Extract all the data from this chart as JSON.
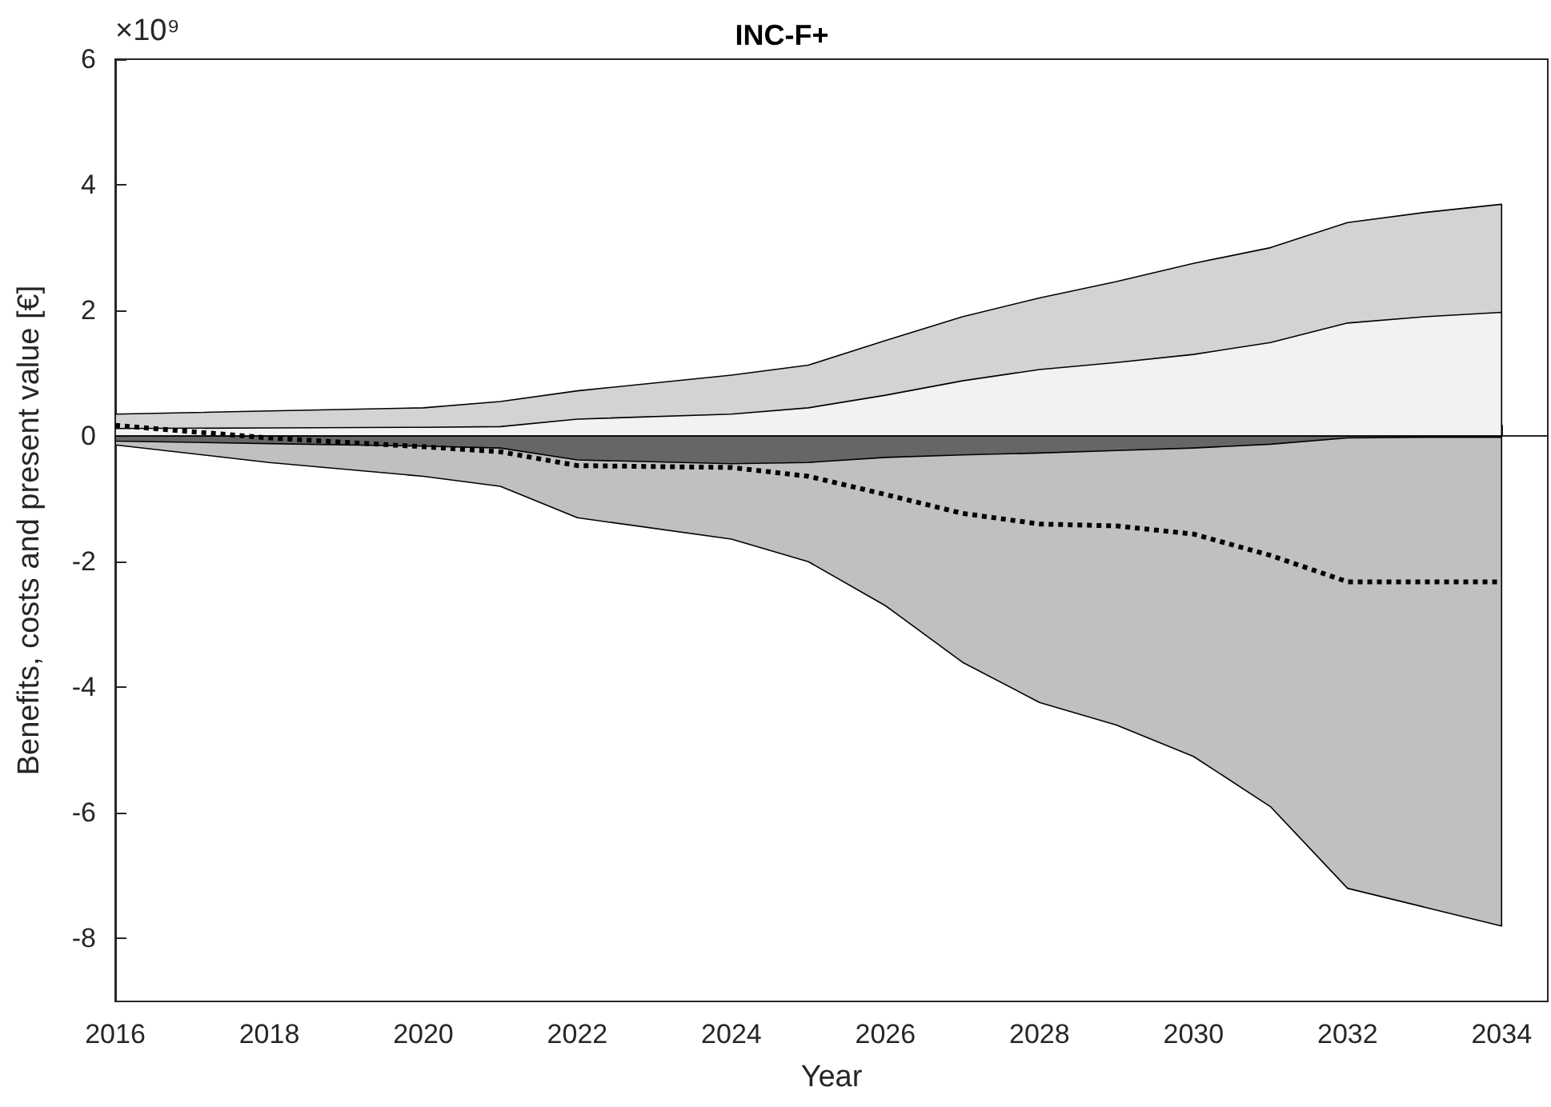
{
  "chart_data": {
    "type": "area",
    "title": "INC-F+",
    "xlabel": "Year",
    "ylabel": "Benefits, costs and present value [€]",
    "annotations": [
      "×10⁹"
    ],
    "x": [
      2016,
      2018,
      2020,
      2021,
      2022,
      2024,
      2025,
      2026,
      2027,
      2028,
      2029,
      2030,
      2031,
      2032,
      2033,
      2034
    ],
    "series": [
      {
        "color": "#d3d3d3",
        "values": [
          0.35,
          0.4,
          0.45,
          0.55,
          0.72,
          0.97,
          1.13,
          1.52,
          1.9,
          2.2,
          2.46,
          2.75,
          3.0,
          3.4,
          3.56,
          3.69
        ]
      },
      {
        "color": "#f2f2f2",
        "values": [
          0.12,
          0.13,
          0.14,
          0.15,
          0.27,
          0.35,
          0.45,
          0.65,
          0.88,
          1.06,
          1.17,
          1.3,
          1.49,
          1.8,
          1.9,
          1.97
        ]
      },
      {
        "color": "#c0c0c0",
        "values": [
          -0.14,
          -0.42,
          -0.64,
          -0.8,
          -1.3,
          -1.64,
          -2.0,
          -2.7,
          -3.6,
          -4.24,
          -4.6,
          -5.1,
          -5.9,
          -7.2,
          -7.5,
          -7.8
        ]
      },
      {
        "color": "#666666",
        "values": [
          -0.08,
          -0.12,
          -0.16,
          -0.19,
          -0.38,
          -0.44,
          -0.42,
          -0.34,
          -0.3,
          -0.27,
          -0.23,
          -0.19,
          -0.13,
          -0.03,
          -0.02,
          -0.02
        ]
      },
      {
        "type": "line",
        "color": "#000000",
        "line_style": "dotted",
        "values": [
          0.17,
          -0.03,
          -0.17,
          -0.25,
          -0.47,
          -0.5,
          -0.64,
          -0.93,
          -1.23,
          -1.4,
          -1.43,
          -1.56,
          -1.9,
          -2.32,
          -2.32,
          -2.32
        ]
      }
    ],
    "xlim": [
      2016,
      2034.6
    ],
    "xticks": [
      2016,
      2018,
      2020,
      2022,
      2024,
      2026,
      2028,
      2030,
      2032,
      2034
    ],
    "ylim": [
      -9,
      6
    ],
    "yticks": [
      -8,
      -6,
      -4,
      -2,
      0,
      2,
      4,
      6
    ],
    "marker": "none"
  }
}
